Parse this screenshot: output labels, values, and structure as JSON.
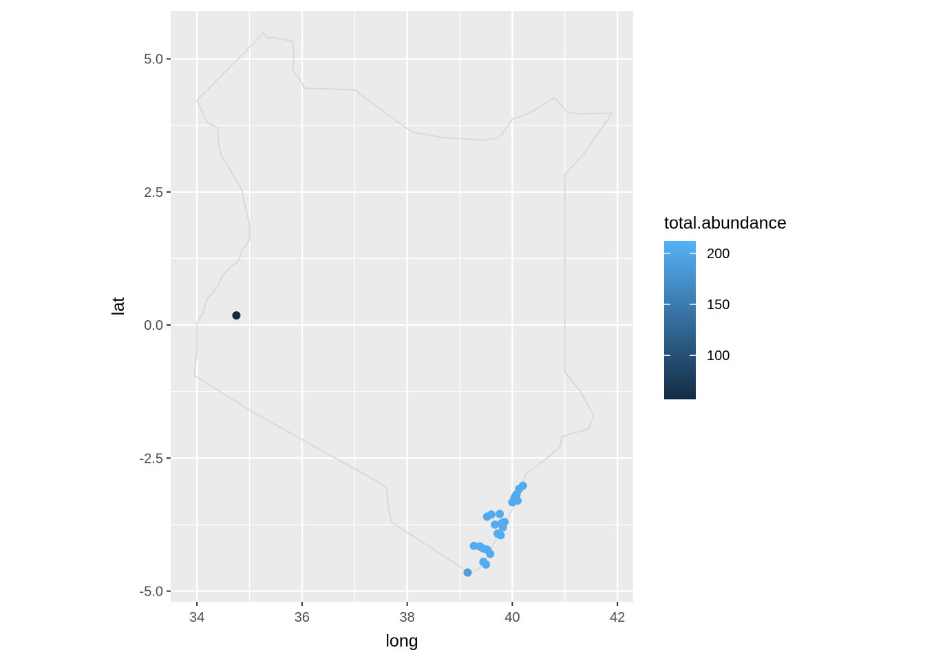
{
  "chart_data": {
    "type": "scatter",
    "xlabel": "long",
    "ylabel": "lat",
    "xlim": [
      33.5,
      42.3
    ],
    "ylim": [
      -5.2,
      5.9
    ],
    "x_ticks": [
      34,
      36,
      38,
      40,
      42
    ],
    "y_ticks": [
      5.0,
      2.5,
      0.0,
      -2.5,
      -5.0
    ],
    "x_tick_labels": [
      "34",
      "36",
      "38",
      "40",
      "42"
    ],
    "y_tick_labels": [
      "5.0",
      "2.5",
      "0.0",
      "-2.5",
      "-5.0"
    ],
    "grid": true,
    "panel_background": "#ebebeb",
    "grid_color": "#ffffff",
    "outline_color": "#d9d9d9",
    "outline": [
      [
        34.0,
        4.22
      ],
      [
        35.27,
        5.49
      ],
      [
        35.35,
        5.38
      ],
      [
        35.45,
        5.41
      ],
      [
        35.82,
        5.33
      ],
      [
        35.85,
        5.05
      ],
      [
        35.82,
        4.78
      ],
      [
        35.95,
        4.62
      ],
      [
        36.05,
        4.45
      ],
      [
        37.0,
        4.42
      ],
      [
        37.4,
        4.12
      ],
      [
        38.1,
        3.62
      ],
      [
        38.7,
        3.52
      ],
      [
        39.45,
        3.47
      ],
      [
        39.75,
        3.52
      ],
      [
        39.85,
        3.65
      ],
      [
        40.0,
        3.87
      ],
      [
        40.3,
        3.97
      ],
      [
        40.8,
        4.27
      ],
      [
        41.05,
        4.0
      ],
      [
        41.25,
        3.97
      ],
      [
        41.9,
        3.98
      ],
      [
        41.35,
        3.2
      ],
      [
        41.0,
        2.83
      ],
      [
        41.0,
        -0.88
      ],
      [
        41.3,
        -1.25
      ],
      [
        41.55,
        -1.7
      ],
      [
        41.45,
        -1.95
      ],
      [
        41.1,
        -2.05
      ],
      [
        40.95,
        -2.1
      ],
      [
        40.9,
        -2.3
      ],
      [
        40.6,
        -2.55
      ],
      [
        40.25,
        -2.8
      ],
      [
        40.18,
        -3.1
      ],
      [
        40.1,
        -3.3
      ],
      [
        39.8,
        -3.8
      ],
      [
        39.6,
        -4.2
      ],
      [
        39.4,
        -4.55
      ],
      [
        39.2,
        -4.67
      ],
      [
        37.7,
        -3.7
      ],
      [
        37.65,
        -3.45
      ],
      [
        37.6,
        -3.05
      ],
      [
        37.45,
        -2.95
      ],
      [
        35.0,
        -1.6
      ],
      [
        34.07,
        -1.02
      ],
      [
        33.95,
        -0.95
      ],
      [
        34.0,
        -0.45
      ],
      [
        34.0,
        0.05
      ],
      [
        34.1,
        0.2
      ],
      [
        34.2,
        0.5
      ],
      [
        34.3,
        0.6
      ],
      [
        34.4,
        0.75
      ],
      [
        34.5,
        0.95
      ],
      [
        34.6,
        1.05
      ],
      [
        34.8,
        1.22
      ],
      [
        34.85,
        1.4
      ],
      [
        35.0,
        1.6
      ],
      [
        35.0,
        1.9
      ],
      [
        34.9,
        2.3
      ],
      [
        34.85,
        2.55
      ],
      [
        34.7,
        2.8
      ],
      [
        34.55,
        3.05
      ],
      [
        34.45,
        3.2
      ],
      [
        34.4,
        3.5
      ],
      [
        34.4,
        3.7
      ],
      [
        34.2,
        3.8
      ],
      [
        34.15,
        3.9
      ],
      [
        34.0,
        4.22
      ]
    ],
    "points": [
      {
        "x": 34.75,
        "y": 0.18,
        "value": 57
      },
      {
        "x": 39.15,
        "y": -4.65,
        "value": 190
      },
      {
        "x": 39.27,
        "y": -4.15,
        "value": 205
      },
      {
        "x": 39.38,
        "y": -4.16,
        "value": 205
      },
      {
        "x": 39.45,
        "y": -4.2,
        "value": 205
      },
      {
        "x": 39.52,
        "y": -4.22,
        "value": 205
      },
      {
        "x": 39.58,
        "y": -4.3,
        "value": 205
      },
      {
        "x": 39.45,
        "y": -4.45,
        "value": 205
      },
      {
        "x": 39.5,
        "y": -4.5,
        "value": 205
      },
      {
        "x": 39.52,
        "y": -3.6,
        "value": 205
      },
      {
        "x": 39.6,
        "y": -3.56,
        "value": 205
      },
      {
        "x": 39.67,
        "y": -3.75,
        "value": 205
      },
      {
        "x": 39.76,
        "y": -3.55,
        "value": 205
      },
      {
        "x": 39.8,
        "y": -3.72,
        "value": 205
      },
      {
        "x": 39.85,
        "y": -3.7,
        "value": 205
      },
      {
        "x": 39.82,
        "y": -3.8,
        "value": 205
      },
      {
        "x": 39.72,
        "y": -3.92,
        "value": 205
      },
      {
        "x": 39.78,
        "y": -3.95,
        "value": 205
      },
      {
        "x": 40.0,
        "y": -3.33,
        "value": 205
      },
      {
        "x": 40.04,
        "y": -3.25,
        "value": 205
      },
      {
        "x": 40.1,
        "y": -3.3,
        "value": 205
      },
      {
        "x": 40.08,
        "y": -3.18,
        "value": 205
      },
      {
        "x": 40.13,
        "y": -3.08,
        "value": 205
      },
      {
        "x": 40.2,
        "y": -3.02,
        "value": 205
      },
      {
        "x": 40.06,
        "y": -3.22,
        "value": 205
      }
    ],
    "legend": {
      "title": "total.abundance",
      "position": "right",
      "min": 57,
      "max": 212,
      "breaks": [
        100,
        150,
        200
      ],
      "break_labels": [
        "100",
        "150",
        "200"
      ],
      "low_color": "#132b43",
      "high_color": "#56b1f7"
    }
  }
}
